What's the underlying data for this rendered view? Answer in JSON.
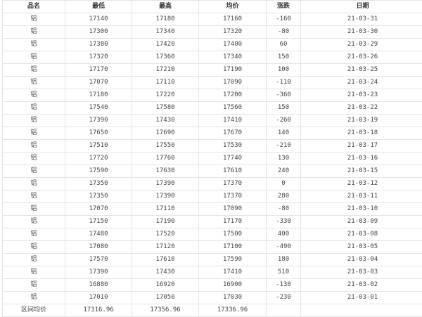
{
  "headers": [
    "品名",
    "最低",
    "最高",
    "均价",
    "涨跌",
    "日期"
  ],
  "rows": [
    [
      "铝",
      "17140",
      "17180",
      "17160",
      "-160",
      "21-03-31"
    ],
    [
      "铝",
      "17300",
      "17340",
      "17320",
      "-80",
      "21-03-30"
    ],
    [
      "铝",
      "17380",
      "17420",
      "17400",
      "60",
      "21-03-29"
    ],
    [
      "铝",
      "17320",
      "17360",
      "17340",
      "150",
      "21-03-26"
    ],
    [
      "铝",
      "17170",
      "17210",
      "17190",
      "100",
      "21-03-25"
    ],
    [
      "铝",
      "17070",
      "17110",
      "17090",
      "-110",
      "21-03-24"
    ],
    [
      "铝",
      "17180",
      "17220",
      "17200",
      "-360",
      "21-03-23"
    ],
    [
      "铝",
      "17540",
      "17580",
      "17560",
      "150",
      "21-03-22"
    ],
    [
      "铝",
      "17390",
      "17430",
      "17410",
      "-260",
      "21-03-19"
    ],
    [
      "铝",
      "17650",
      "17690",
      "17670",
      "140",
      "21-03-18"
    ],
    [
      "铝",
      "17510",
      "17550",
      "17530",
      "-210",
      "21-03-17"
    ],
    [
      "铝",
      "17720",
      "17760",
      "17740",
      "130",
      "21-03-16"
    ],
    [
      "铝",
      "17590",
      "17630",
      "17610",
      "240",
      "21-03-15"
    ],
    [
      "铝",
      "17350",
      "17390",
      "17370",
      "0",
      "21-03-12"
    ],
    [
      "铝",
      "17350",
      "17390",
      "17370",
      "280",
      "21-03-11"
    ],
    [
      "铝",
      "17070",
      "17110",
      "17090",
      "-80",
      "21-03-10"
    ],
    [
      "铝",
      "17150",
      "17190",
      "17170",
      "-330",
      "21-03-09"
    ],
    [
      "铝",
      "17480",
      "17520",
      "17500",
      "400",
      "21-03-08"
    ],
    [
      "铝",
      "17080",
      "17120",
      "17100",
      "-490",
      "21-03-05"
    ],
    [
      "铝",
      "17570",
      "17610",
      "17590",
      "180",
      "21-03-04"
    ],
    [
      "铝",
      "17390",
      "17430",
      "17410",
      "510",
      "21-03-03"
    ],
    [
      "铝",
      "16880",
      "16920",
      "16900",
      "-130",
      "21-03-02"
    ],
    [
      "铝",
      "17010",
      "17050",
      "17030",
      "-230",
      "21-03-01"
    ]
  ],
  "summary": [
    "区间均价",
    "17316.96",
    "17356.96",
    "17336.96",
    "",
    ""
  ]
}
